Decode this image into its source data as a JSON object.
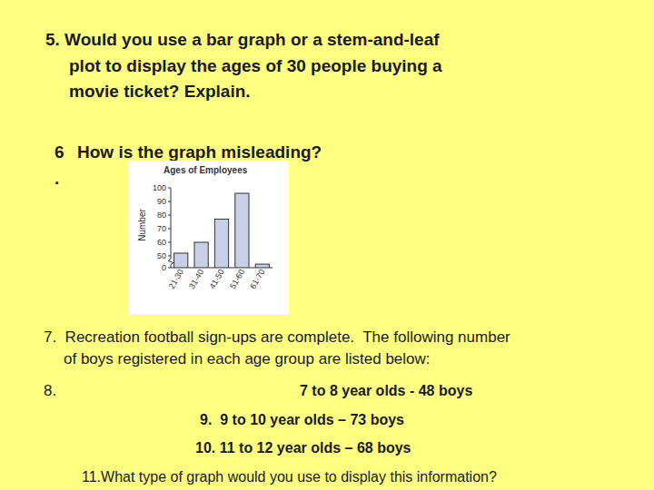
{
  "q5": {
    "lines": [
      "5. Would you use a bar graph or a stem-and-leaf",
      "plot to display the ages of 30 people buying a",
      "movie ticket? Explain."
    ]
  },
  "q6": {
    "number": "6",
    "text": "How is the graph misleading?",
    "dot": "."
  },
  "q7": {
    "lines": [
      "7.  Recreation football sign-ups are complete.  The following number",
      "of boys registered in each age group are listed below:"
    ]
  },
  "q8": {
    "number": "8.",
    "text": "7 to 8 year olds - 48 boys"
  },
  "q9": {
    "text": "9.  9 to 10 year olds – 73 boys"
  },
  "q10": {
    "text": "10. 11 to 12 year olds – 68 boys"
  },
  "q11": {
    "text": "11.What type of graph would you use to display this information?"
  },
  "chart_data": {
    "type": "bar",
    "title": "Ages of Employees",
    "y_label": "Number",
    "categories": [
      "21-30",
      "31-40",
      "41-50",
      "51-60",
      "61-70"
    ],
    "values": [
      52,
      60,
      77,
      96,
      15
    ],
    "color": "#c9cfe6",
    "ylim": [
      0,
      100
    ],
    "yticks": [
      0,
      50,
      60,
      70,
      80,
      90,
      100
    ]
  }
}
